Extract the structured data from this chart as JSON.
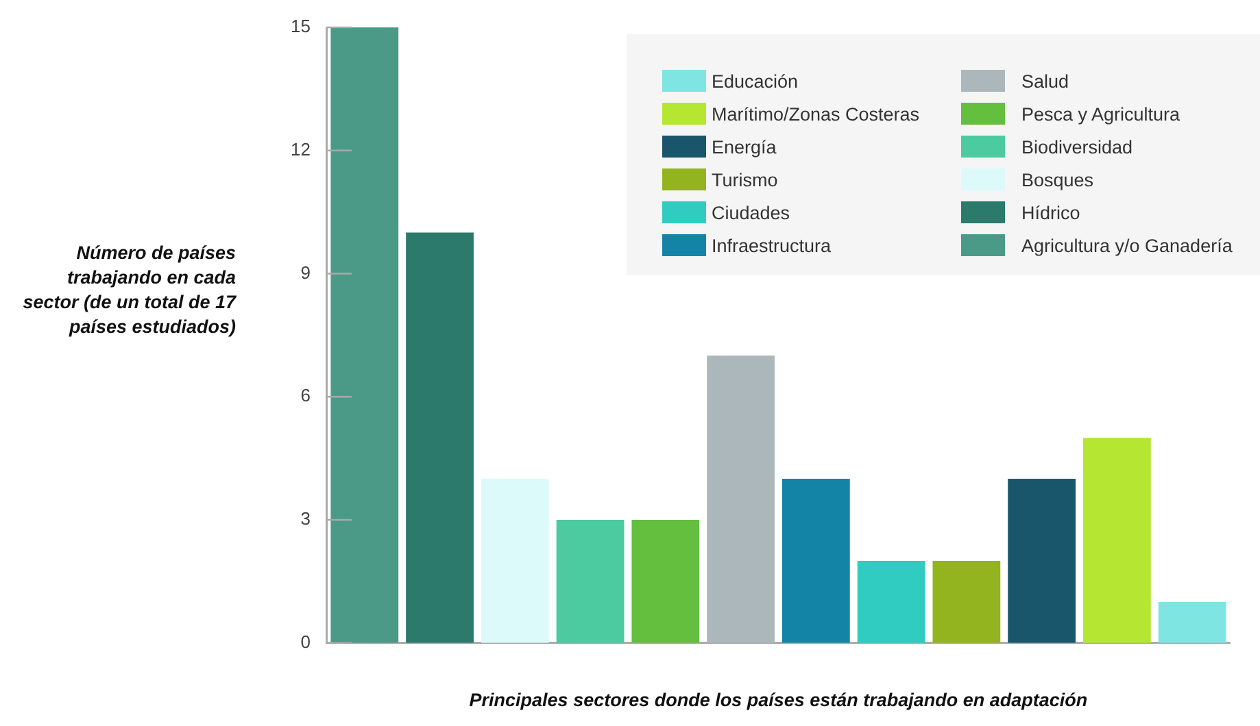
{
  "chart_data": {
    "type": "bar",
    "xlabel": "Principales sectores donde los países están trabajando en adaptación",
    "ylabel": "Número de países trabajando en cada sector (de un total de 17 países estudiados)",
    "categories": [
      null,
      null,
      null,
      null,
      null,
      null,
      null,
      null,
      null,
      null,
      null,
      null
    ],
    "series": [
      {
        "name": "Educación",
        "color": "#7fe5e2",
        "values": [
          null,
          null,
          null,
          null,
          null,
          null,
          null,
          null,
          null,
          null,
          null,
          1
        ]
      },
      {
        "name": "Marítimo/Zonas Costeras",
        "color": "#b5e631",
        "values": [
          null,
          null,
          null,
          null,
          null,
          null,
          null,
          null,
          null,
          null,
          5,
          null
        ]
      },
      {
        "name": "Energía",
        "color": "#1a566b",
        "values": [
          null,
          null,
          null,
          null,
          null,
          null,
          null,
          null,
          null,
          4,
          null,
          null
        ]
      },
      {
        "name": "Turismo",
        "color": "#93b41f",
        "values": [
          null,
          null,
          null,
          null,
          null,
          null,
          null,
          null,
          2,
          null,
          null,
          null
        ]
      },
      {
        "name": "Ciudades",
        "color": "#31ccc1",
        "values": [
          null,
          null,
          null,
          null,
          null,
          null,
          null,
          2,
          null,
          null,
          null,
          null
        ]
      },
      {
        "name": "Infraestructura",
        "color": "#1484a6",
        "values": [
          null,
          null,
          null,
          null,
          null,
          null,
          4,
          null,
          null,
          null,
          null,
          null
        ]
      },
      {
        "name": "Salud",
        "color": "#abb7ba",
        "values": [
          null,
          null,
          null,
          null,
          null,
          7,
          null,
          null,
          null,
          null,
          null,
          null
        ]
      },
      {
        "name": "Pesca y Agricultura",
        "color": "#63bf3d",
        "values": [
          null,
          null,
          null,
          null,
          3,
          null,
          null,
          null,
          null,
          null,
          null,
          null
        ]
      },
      {
        "name": "Biodiversidad",
        "color": "#4ccaa0",
        "values": [
          null,
          null,
          null,
          3,
          null,
          null,
          null,
          null,
          null,
          null,
          null,
          null
        ]
      },
      {
        "name": "Bosques",
        "color": "#dcfafa",
        "values": [
          null,
          null,
          4,
          null,
          null,
          null,
          null,
          null,
          null,
          null,
          null,
          null
        ]
      },
      {
        "name": "Hídrico",
        "color": "#2c7a6b",
        "values": [
          null,
          10,
          null,
          null,
          null,
          null,
          null,
          null,
          null,
          null,
          null,
          null
        ]
      },
      {
        "name": "Agricultura y/o Ganadería",
        "color": "#4a9a87",
        "values": [
          15,
          null,
          null,
          null,
          null,
          null,
          null,
          null,
          null,
          null,
          null,
          null
        ]
      }
    ],
    "ylim": [
      0,
      15
    ],
    "yticks": [
      0,
      3,
      6,
      9,
      12,
      15
    ],
    "grid": false,
    "legend": "top right"
  }
}
